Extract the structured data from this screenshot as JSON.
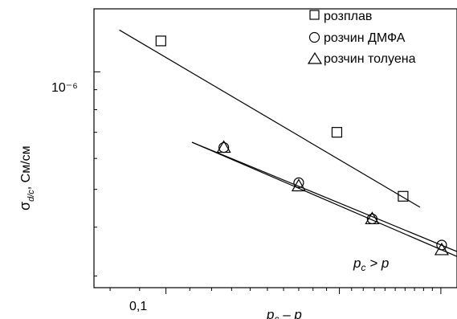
{
  "chart_data": {
    "type": "scatter",
    "title": "",
    "xscale": "log",
    "yscale": "log",
    "xlim": [
      0.075,
      0.32
    ],
    "ylim": [
      2.8e-07,
      1.45e-06
    ],
    "xlabel": {
      "base": "p",
      "sub": "c",
      "rest": " – p"
    },
    "ylabel": {
      "sym": "σ",
      "sub": "d/c",
      "rest": ", См/см"
    },
    "x_ticks": [
      {
        "value": 0.1,
        "label": "0,1"
      },
      {
        "value": 0.2,
        "label": ""
      },
      {
        "value": 0.3,
        "label": ""
      }
    ],
    "y_ticks": [
      {
        "value": 1e-06,
        "label": "10⁻⁶"
      }
    ],
    "legend_position": "top-right",
    "annotation": {
      "a": "p",
      "sub": "c",
      "rest": " > p",
      "position": "bottom-right"
    },
    "series": [
      {
        "name": "розплав",
        "marker": "square",
        "points": [
          [
            0.098,
            1.2e-06
          ],
          [
            0.198,
            7e-07
          ],
          [
            0.258,
            4.8e-07
          ]
        ],
        "fit": [
          [
            0.083,
            1.28e-06
          ],
          [
            0.276,
            4.5e-07
          ]
        ]
      },
      {
        "name": "розчин ДМФА",
        "marker": "circle",
        "points": [
          [
            0.126,
            6.4e-07
          ],
          [
            0.17,
            5.2e-07
          ],
          [
            0.228,
            4.2e-07
          ],
          [
            0.301,
            3.6e-07
          ]
        ],
        "fit": [
          [
            0.111,
            6.6e-07
          ],
          [
            0.33,
            3.4e-07
          ]
        ]
      },
      {
        "name": "розчин толуена",
        "marker": "triangle",
        "points": [
          [
            0.126,
            6.4e-07
          ],
          [
            0.17,
            5.1e-07
          ],
          [
            0.228,
            4.2e-07
          ],
          [
            0.301,
            3.5e-07
          ]
        ],
        "fit": [
          [
            0.111,
            6.6e-07
          ],
          [
            0.33,
            3.3e-07
          ]
        ]
      }
    ]
  }
}
